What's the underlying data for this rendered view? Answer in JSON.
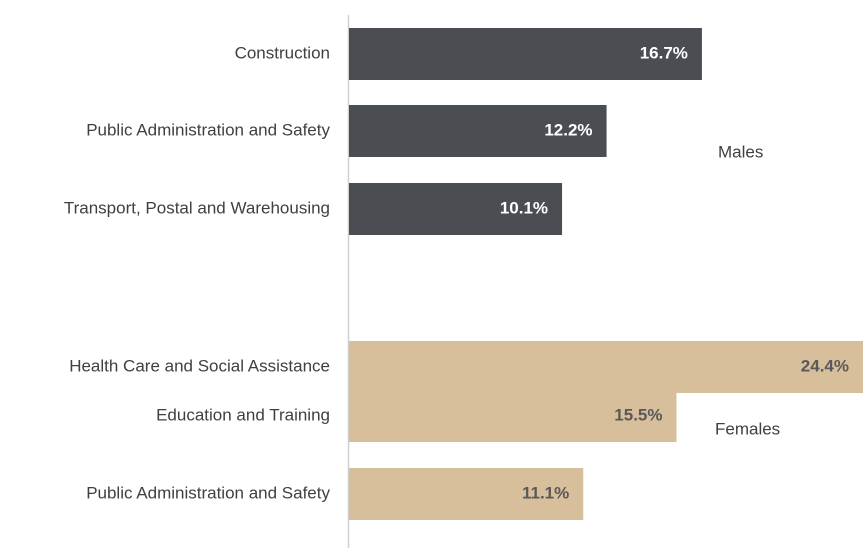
{
  "chart_data": {
    "type": "bar",
    "xlim": [
      0,
      24.3
    ],
    "groups": [
      {
        "name": "Males",
        "color": "#4a4d52",
        "label_color": "#ffffff",
        "categories": [
          "Construction",
          "Public Administration and Safety",
          "Transport, Postal and Warehousing"
        ],
        "values": [
          16.7,
          12.2,
          10.1
        ],
        "value_labels": [
          "16.7%",
          "12.2%",
          "10.1%"
        ]
      },
      {
        "name": "Females",
        "color": "#d8bf9c",
        "label_color": "#595959",
        "categories": [
          "Health Care and Social Assistance",
          "Education and Training",
          "Public Administration and Safety"
        ],
        "values": [
          24.4,
          15.5,
          11.1
        ],
        "value_labels": [
          "24.4%",
          "15.5%",
          "11.1%"
        ]
      }
    ]
  }
}
